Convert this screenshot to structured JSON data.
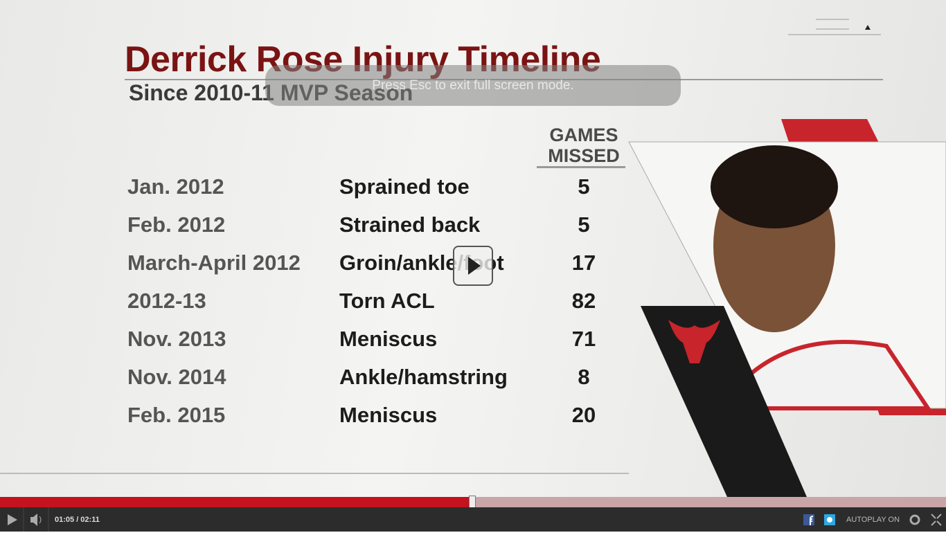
{
  "header": {
    "title": "Derrick Rose Injury Timeline",
    "subtitle": "Since 2010-11 MVP Season"
  },
  "table": {
    "games_header": [
      "GAMES",
      "MISSED"
    ],
    "rows": [
      [
        "Jan. 2012",
        "Sprained toe",
        5
      ],
      [
        "Feb. 2012",
        "Strained back",
        5
      ],
      [
        "March-April 2012",
        "Groin/ankle/foot",
        17
      ],
      [
        "2012-13",
        "Torn ACL",
        82
      ],
      [
        "Nov. 2013",
        "Meniscus",
        71
      ],
      [
        "Nov. 2014",
        "Ankle/hamstring",
        8
      ],
      [
        "Feb. 2015",
        "Meniscus",
        20
      ]
    ]
  },
  "overlay": {
    "fullscreen_notice": "Press Esc to exit full screen mode."
  },
  "player": {
    "time": "01:05 / 02:11",
    "autoplay": "AUTOPLAY ON"
  }
}
